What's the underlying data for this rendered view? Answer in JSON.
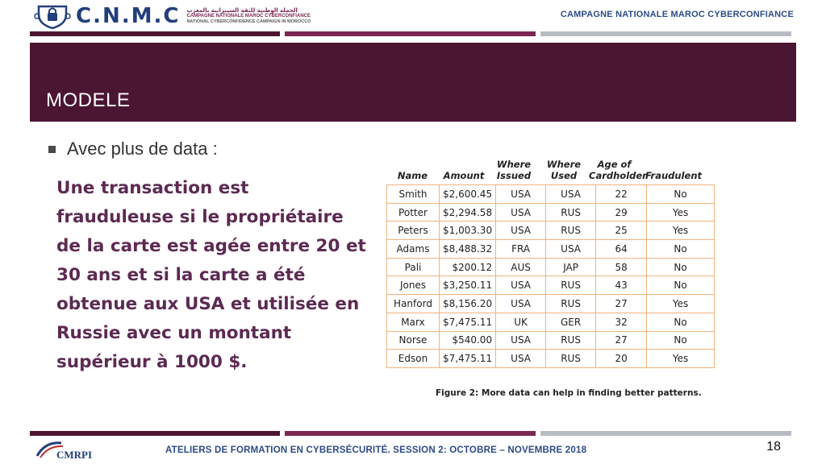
{
  "header": {
    "logo_text": "C.N.M.C",
    "logo_sub_ar": "الحملة الوطنية للثقة السيبرانية بالمغرب",
    "logo_sub_fr": "CAMPAGNE NATIONALE MAROC CYBERCONFIANCE",
    "logo_sub_en": "NATIONAL CYBERCONFIDENCE CAMPAIGN IN MOROCCO",
    "campaign": "CAMPAGNE NATIONALE MAROC CYBERCONFIANCE"
  },
  "colors": {
    "bar_gray": "#b8bcc2",
    "bar_purple": "#7b2752",
    "title_band": "#4b1632",
    "accent_blue": "#2d4a86"
  },
  "title": "MODELE",
  "bullet": "Avec plus de data :",
  "rule": "Une transaction est frauduleuse si le propriétaire de la carte est agée entre 20 et 30 ans et si la carte a été obtenue aux USA et utilisée en Russie avec un montant supérieur à 1000 $.",
  "table": {
    "headers": [
      "Name",
      "Amount",
      "Where Issued",
      "Where Used",
      "Age of Cardholder",
      "Fraudulent"
    ],
    "rows": [
      [
        "Smith",
        "$2,600.45",
        "USA",
        "USA",
        "22",
        "No"
      ],
      [
        "Potter",
        "$2,294.58",
        "USA",
        "RUS",
        "29",
        "Yes"
      ],
      [
        "Peters",
        "$1,003.30",
        "USA",
        "RUS",
        "25",
        "Yes"
      ],
      [
        "Adams",
        "$8,488.32",
        "FRA",
        "USA",
        "64",
        "No"
      ],
      [
        "Pali",
        "$200.12",
        "AUS",
        "JAP",
        "58",
        "No"
      ],
      [
        "Jones",
        "$3,250.11",
        "USA",
        "RUS",
        "43",
        "No"
      ],
      [
        "Hanford",
        "$8,156.20",
        "USA",
        "RUS",
        "27",
        "Yes"
      ],
      [
        "Marx",
        "$7,475.11",
        "UK",
        "GER",
        "32",
        "No"
      ],
      [
        "Norse",
        "$540.00",
        "USA",
        "RUS",
        "27",
        "No"
      ],
      [
        "Edson",
        "$7,475.11",
        "USA",
        "RUS",
        "20",
        "Yes"
      ]
    ],
    "caption": "Figure 2: More data can help in finding better patterns."
  },
  "footer": {
    "logo_text": "CMRPI",
    "text": "ATELIERS DE FORMATION EN CYBERSÉCURITÉ.  SESSION 2: OCTOBRE – NOVEMBRE 2018",
    "page_number": "18"
  }
}
